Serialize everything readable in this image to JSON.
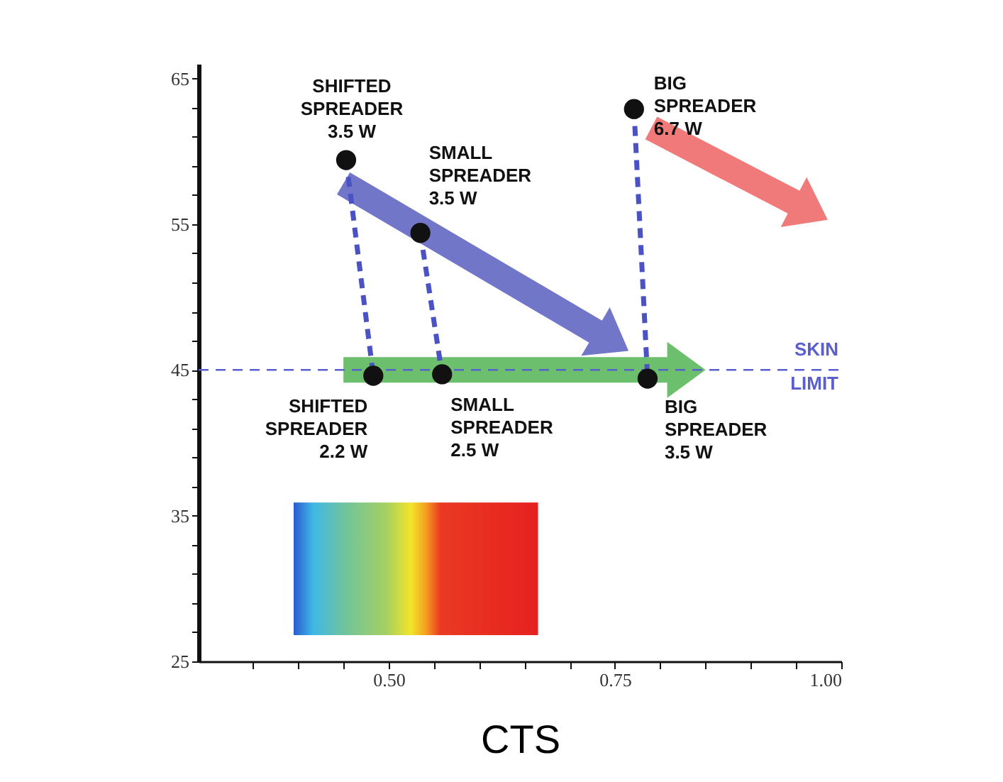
{
  "chart_data": {
    "type": "scatter",
    "xlabel": "CTS",
    "xlim": [
      0.29,
      1.0
    ],
    "xticks": [
      {
        "value": 0.35,
        "label": null
      },
      {
        "value": 0.4,
        "label": null
      },
      {
        "value": 0.45,
        "label": null
      },
      {
        "value": 0.5,
        "label": "0.50"
      },
      {
        "value": 0.55,
        "label": null
      },
      {
        "value": 0.6,
        "label": null
      },
      {
        "value": 0.65,
        "label": null
      },
      {
        "value": 0.7,
        "label": null
      },
      {
        "value": 0.75,
        "label": "0.75"
      },
      {
        "value": 0.8,
        "label": null
      },
      {
        "value": 0.85,
        "label": null
      },
      {
        "value": 0.9,
        "label": null
      },
      {
        "value": 0.95,
        "label": null
      },
      {
        "value": 1.0,
        "label": "1.00"
      }
    ],
    "ylim": [
      25,
      66
    ],
    "yticks": [
      25,
      {
        "value": 27,
        "label": null
      },
      {
        "value": 29,
        "label": null
      },
      {
        "value": 31,
        "label": null
      },
      {
        "value": 33,
        "label": null
      },
      35,
      {
        "value": 37,
        "label": null
      },
      {
        "value": 39,
        "label": null
      },
      {
        "value": 41,
        "label": null
      },
      {
        "value": 43,
        "label": null
      },
      45,
      {
        "value": 47,
        "label": null
      },
      {
        "value": 49,
        "label": null
      },
      {
        "value": 51,
        "label": null
      },
      {
        "value": 53,
        "label": null
      },
      55,
      {
        "value": 57,
        "label": null
      },
      {
        "value": 59,
        "label": null
      },
      {
        "value": 61,
        "label": null
      },
      {
        "value": 63,
        "label": null
      },
      65
    ],
    "series": [
      {
        "type": "line",
        "color": "#4b52c4",
        "line_style": "dashed",
        "x": [
          0.453,
          0.483
        ],
        "values": [
          59.4,
          44.6
        ]
      },
      {
        "type": "line",
        "color": "#4b52c4",
        "line_style": "dashed",
        "x": [
          0.535,
          0.559
        ],
        "values": [
          54.4,
          44.7
        ]
      },
      {
        "type": "line",
        "color": "#4b52c4",
        "line_style": "dashed",
        "x": [
          0.771,
          0.786
        ],
        "values": [
          62.9,
          44.4
        ]
      },
      {
        "type": "scatter",
        "marker": "circle",
        "color": "#111111",
        "x": [
          0.453,
          0.535,
          0.771,
          0.483,
          0.559,
          0.786
        ],
        "values": [
          59.4,
          54.4,
          62.9,
          44.6,
          44.7,
          44.4
        ]
      }
    ],
    "ref_lines": [
      {
        "axis": "y",
        "value": 45,
        "label": "SKIN LIMIT",
        "color": "#5a5fd0",
        "line_style": "dashed"
      }
    ],
    "annotations": [
      {
        "text": "SHIFTED\nSPREADER\n3.5 W",
        "x": 0.453,
        "y": 59.4
      },
      {
        "text": "SMALL\nSPREADER\n3.5 W",
        "x": 0.535,
        "y": 54.4
      },
      {
        "text": "BIG\nSPREADER\n6.7 W",
        "x": 0.771,
        "y": 62.9
      },
      {
        "text": "SHIFTED\nSPREADER\n2.2 W",
        "x": 0.483,
        "y": 44.6
      },
      {
        "text": "SMALL\nSPREADER\n2.5 W",
        "x": 0.559,
        "y": 44.7
      },
      {
        "text": "BIG\nSPREADER\n3.5 W",
        "x": 0.786,
        "y": 44.4
      }
    ]
  }
}
